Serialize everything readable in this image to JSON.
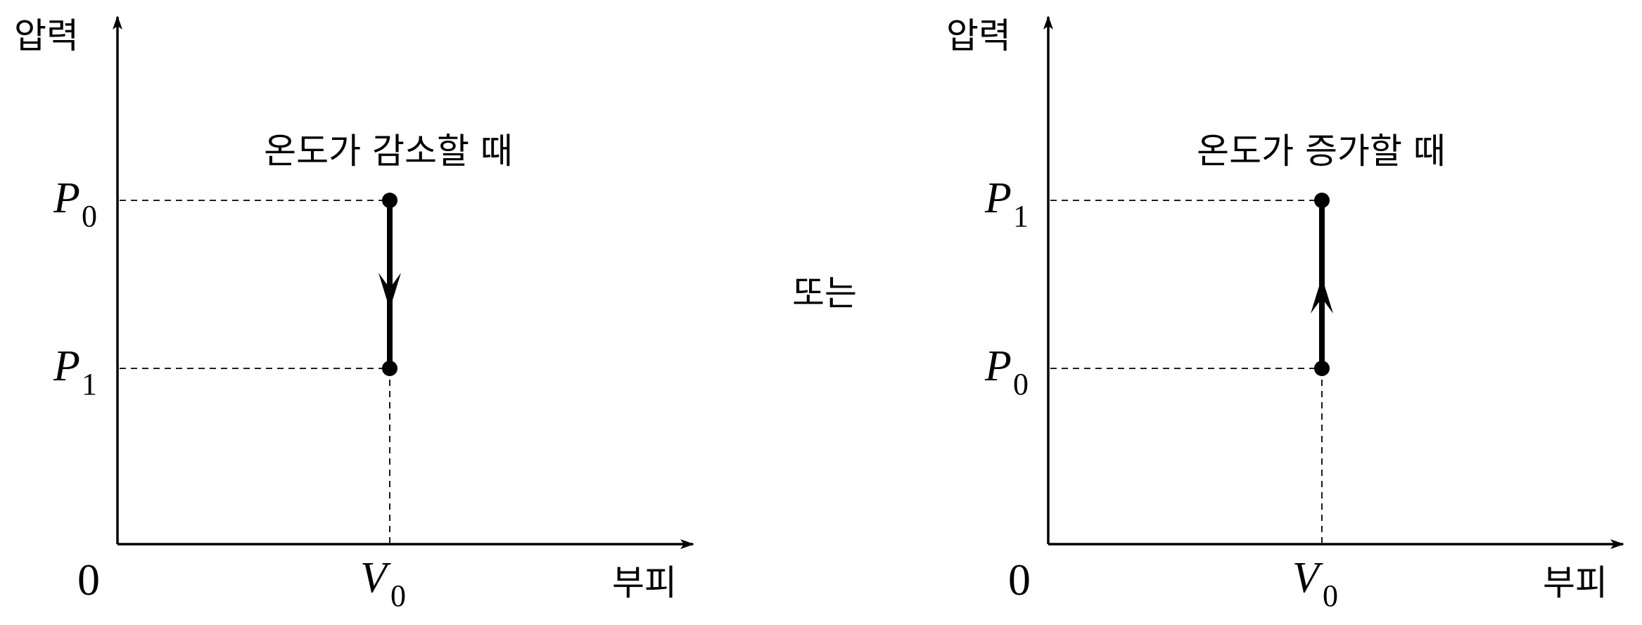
{
  "connector": "또는",
  "diagrams": [
    {
      "title": "온도가 감소할 때",
      "y_axis_label": "압력",
      "x_axis_label": "부피",
      "origin_label": "0",
      "x_tick": {
        "symbol": "V",
        "sub": "0"
      },
      "y_ticks": [
        {
          "symbol": "P",
          "sub": "0"
        },
        {
          "symbol": "P",
          "sub": "1"
        }
      ],
      "process": {
        "from": "P0",
        "to": "P1",
        "direction": "down"
      }
    },
    {
      "title": "온도가 증가할 때",
      "y_axis_label": "압력",
      "x_axis_label": "부피",
      "origin_label": "0",
      "x_tick": {
        "symbol": "V",
        "sub": "0"
      },
      "y_ticks": [
        {
          "symbol": "P",
          "sub": "1"
        },
        {
          "symbol": "P",
          "sub": "0"
        }
      ],
      "process": {
        "from": "P0",
        "to": "P1",
        "direction": "up"
      }
    }
  ]
}
